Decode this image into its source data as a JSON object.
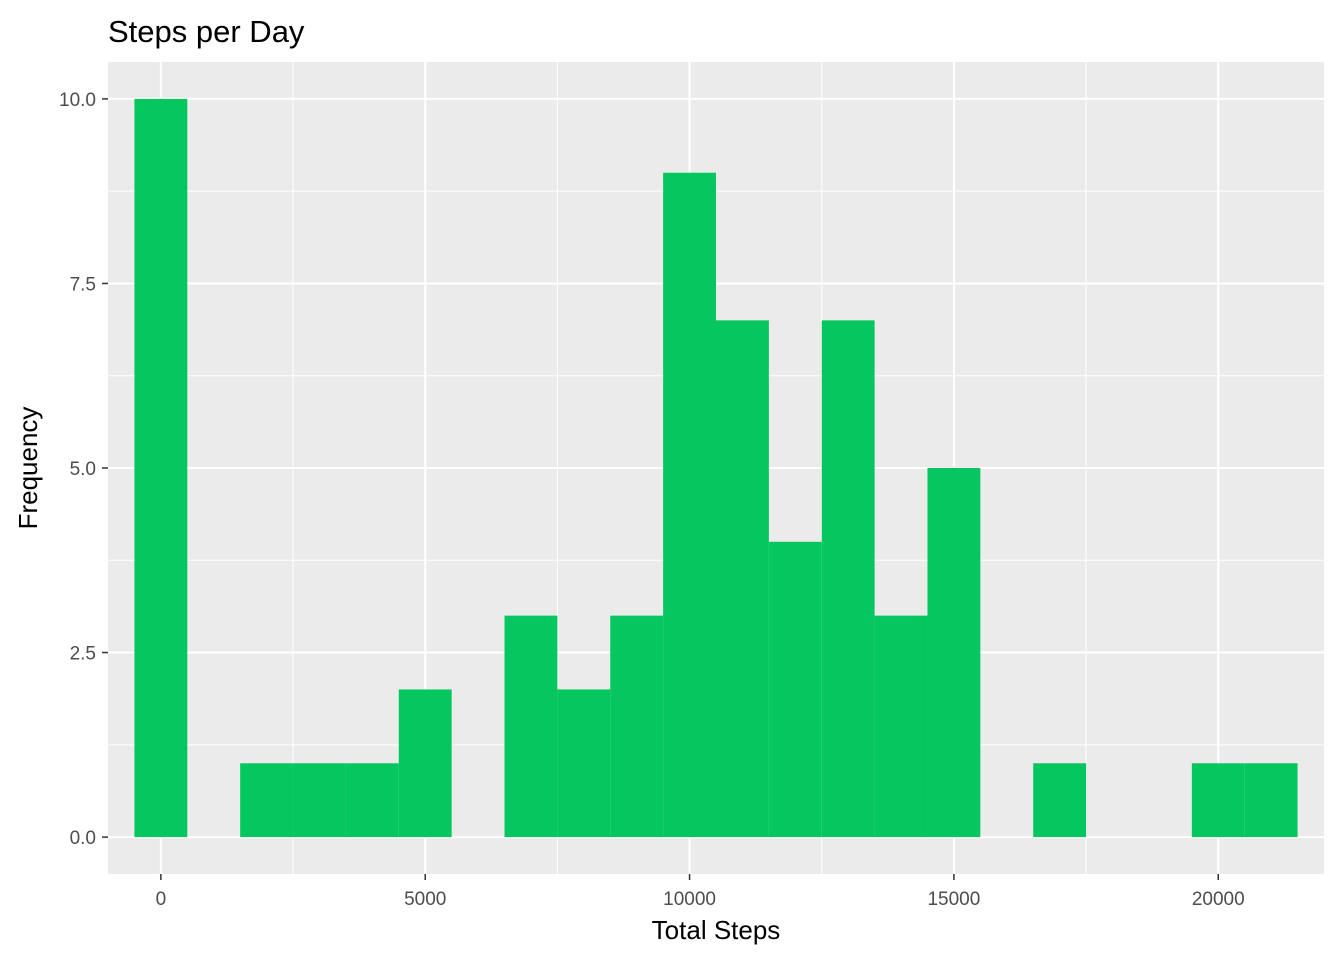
{
  "chart_data": {
    "type": "bar",
    "subtype": "histogram",
    "title": "Steps per Day",
    "xlabel": "Total Steps",
    "ylabel": "Frequency",
    "bin_width": 1000,
    "bins": [
      {
        "center": 0,
        "count": 10
      },
      {
        "center": 1000,
        "count": 0
      },
      {
        "center": 2000,
        "count": 1
      },
      {
        "center": 3000,
        "count": 1
      },
      {
        "center": 4000,
        "count": 1
      },
      {
        "center": 5000,
        "count": 2
      },
      {
        "center": 6000,
        "count": 0
      },
      {
        "center": 7000,
        "count": 3
      },
      {
        "center": 8000,
        "count": 2
      },
      {
        "center": 9000,
        "count": 3
      },
      {
        "center": 10000,
        "count": 9
      },
      {
        "center": 11000,
        "count": 7
      },
      {
        "center": 12000,
        "count": 4
      },
      {
        "center": 13000,
        "count": 7
      },
      {
        "center": 14000,
        "count": 3
      },
      {
        "center": 15000,
        "count": 5
      },
      {
        "center": 16000,
        "count": 0
      },
      {
        "center": 17000,
        "count": 1
      },
      {
        "center": 18000,
        "count": 0
      },
      {
        "center": 19000,
        "count": 0
      },
      {
        "center": 20000,
        "count": 1
      },
      {
        "center": 21000,
        "count": 1
      }
    ],
    "xlim": [
      -1000,
      22000
    ],
    "ylim": [
      -0.5,
      10.5
    ],
    "x_ticks": [
      0,
      5000,
      10000,
      15000,
      20000
    ],
    "x_tick_labels": [
      "0",
      "5000",
      "10000",
      "15000",
      "20000"
    ],
    "y_ticks": [
      0,
      2.5,
      5,
      7.5,
      10
    ],
    "y_tick_labels": [
      "0.0",
      "2.5",
      "5.0",
      "7.5",
      "10.0"
    ],
    "grid": true,
    "legend": "none",
    "colors": {
      "bar": "#06c65f",
      "panel": "#ebebeb",
      "grid": "#ffffff",
      "tick_label": "#4d4d4d",
      "tick_mark": "#333333"
    }
  }
}
